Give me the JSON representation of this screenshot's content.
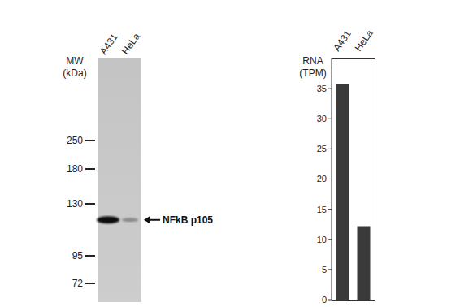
{
  "blot": {
    "mw_label": "MW (kDa)",
    "lanes": [
      "A431",
      "HeLa"
    ],
    "markers": [
      250,
      180,
      130,
      95,
      72
    ],
    "band": {
      "label": "NFkB p105",
      "kda": 118
    }
  },
  "chart_data": {
    "type": "bar",
    "ylabel": "RNA (TPM)",
    "categories": [
      "A431",
      "HeLa"
    ],
    "values": [
      35.7,
      12.2
    ],
    "color": "#3a3a3a",
    "ylim": [
      0,
      40
    ],
    "yticks": [
      0,
      5,
      10,
      15,
      20,
      25,
      30,
      35
    ],
    "grid": false
  }
}
